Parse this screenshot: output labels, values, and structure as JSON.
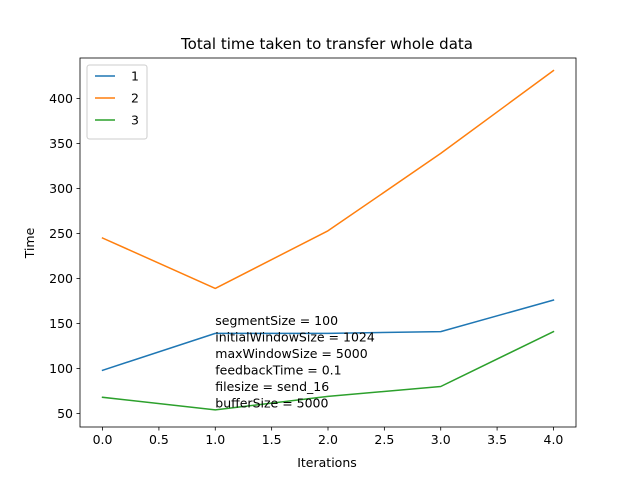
{
  "chart_data": {
    "type": "line",
    "title": "Total time taken to transfer whole data",
    "xlabel": "Iterations",
    "ylabel": "Time",
    "x": [
      0,
      1,
      2,
      3,
      4
    ],
    "series": [
      {
        "name": "1",
        "color": "#1f77b4",
        "values": [
          98,
          139,
          139,
          141,
          176
        ]
      },
      {
        "name": "2",
        "color": "#ff7f0e",
        "values": [
          245,
          189,
          253,
          339,
          431
        ]
      },
      {
        "name": "3",
        "color": "#2ca02c",
        "values": [
          68,
          54,
          69,
          80,
          141
        ]
      }
    ],
    "xlim": [
      -0.2,
      4.2
    ],
    "ylim": [
      35,
      445
    ],
    "xticks": [
      0.0,
      0.5,
      1.0,
      1.5,
      2.0,
      2.5,
      3.0,
      3.5,
      4.0
    ],
    "xtick_labels": [
      "0.0",
      "0.5",
      "1.0",
      "1.5",
      "2.0",
      "2.5",
      "3.0",
      "3.5",
      "4.0"
    ],
    "yticks": [
      50,
      100,
      150,
      200,
      250,
      300,
      350,
      400
    ],
    "ytick_labels": [
      "50",
      "100",
      "150",
      "200",
      "250",
      "300",
      "350",
      "400"
    ],
    "grid": false,
    "legend_position": "top-left",
    "annotation": {
      "x": 1.0,
      "y": 150,
      "lines": [
        "segmentSize = 100",
        "initialWindowSize = 1024",
        "maxWindowSize = 5000",
        "feedbackTime = 0.1",
        "filesize = send_16",
        "bufferSize = 5000"
      ]
    }
  }
}
